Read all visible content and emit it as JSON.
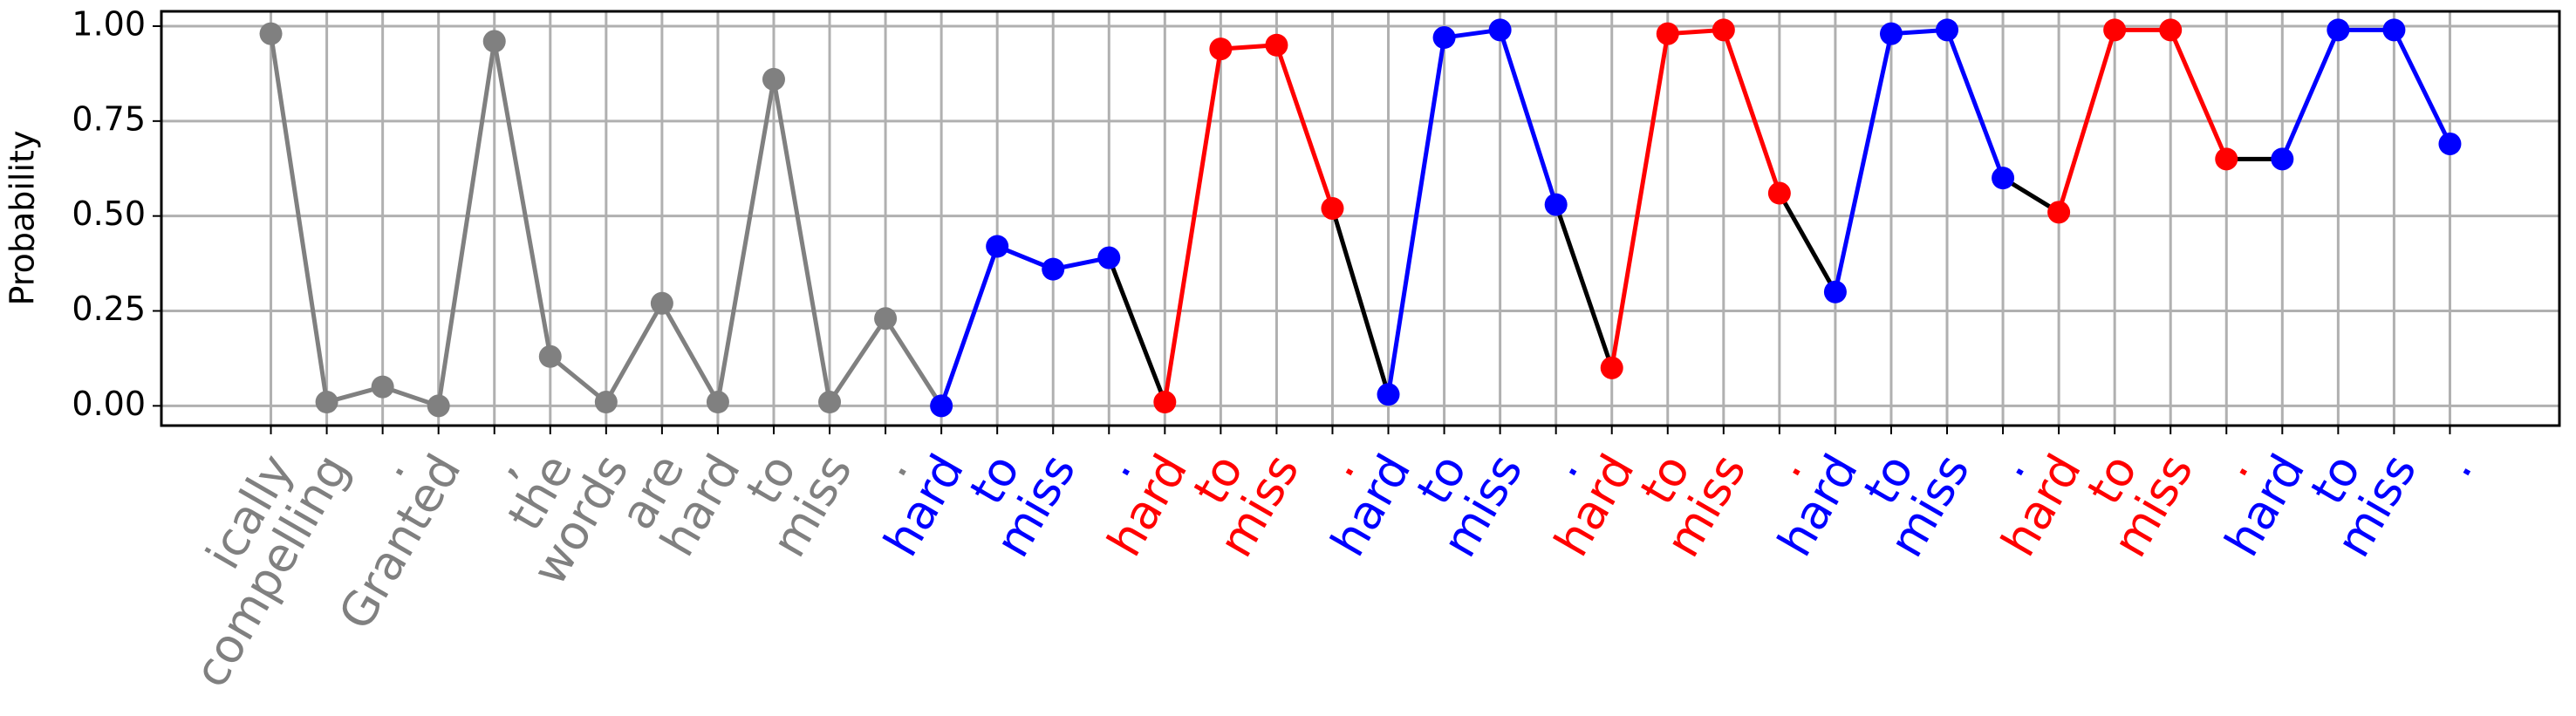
{
  "chart_data": {
    "type": "line",
    "y_label": "Probability",
    "categories": [
      "ically",
      "compelling",
      ".",
      "Granted",
      ",",
      "the",
      "words",
      "are",
      "hard",
      "to",
      "miss",
      ".",
      "hard",
      "to",
      "miss",
      ".",
      "hard",
      "to",
      "miss",
      ".",
      "hard",
      "to",
      "miss",
      ".",
      "hard",
      "to",
      "miss",
      ".",
      "hard",
      "to",
      "miss",
      ".",
      "hard",
      "to",
      "miss",
      ".",
      "hard",
      "to",
      "miss",
      "."
    ],
    "series": [
      {
        "values": [
          0.98,
          0.01,
          0.05,
          0.0,
          0.96,
          0.13,
          0.01,
          0.27,
          0.01,
          0.86,
          0.01,
          0.23,
          0.0,
          0.42,
          0.36,
          0.39,
          0.01,
          0.94,
          0.95,
          0.52,
          0.03,
          0.97,
          0.99,
          0.53,
          0.1,
          0.98,
          0.99,
          0.56,
          0.3,
          0.98,
          0.99,
          0.6,
          0.51,
          0.99,
          0.99,
          0.65,
          0.65,
          0.99,
          0.99,
          0.69
        ],
        "point_colors": [
          "#808080",
          "#808080",
          "#808080",
          "#808080",
          "#808080",
          "#808080",
          "#808080",
          "#808080",
          "#808080",
          "#808080",
          "#808080",
          "#808080",
          "#0000ff",
          "#0000ff",
          "#0000ff",
          "#0000ff",
          "#ff0000",
          "#ff0000",
          "#ff0000",
          "#ff0000",
          "#0000ff",
          "#0000ff",
          "#0000ff",
          "#0000ff",
          "#ff0000",
          "#ff0000",
          "#ff0000",
          "#ff0000",
          "#0000ff",
          "#0000ff",
          "#0000ff",
          "#0000ff",
          "#ff0000",
          "#ff0000",
          "#ff0000",
          "#ff0000",
          "#0000ff",
          "#0000ff",
          "#0000ff",
          "#0000ff"
        ],
        "segment_colors": [
          "#808080",
          "#808080",
          "#808080",
          "#808080",
          "#808080",
          "#808080",
          "#808080",
          "#808080",
          "#808080",
          "#808080",
          "#808080",
          "#808080",
          "#0000ff",
          "#0000ff",
          "#0000ff",
          "#000000",
          "#ff0000",
          "#ff0000",
          "#ff0000",
          "#000000",
          "#0000ff",
          "#0000ff",
          "#0000ff",
          "#000000",
          "#ff0000",
          "#ff0000",
          "#ff0000",
          "#000000",
          "#0000ff",
          "#0000ff",
          "#0000ff",
          "#000000",
          "#ff0000",
          "#ff0000",
          "#ff0000",
          "#000000",
          "#0000ff",
          "#0000ff",
          "#0000ff"
        ]
      }
    ],
    "ylim": [
      -0.052,
      1.039
    ],
    "yticks": [
      {
        "value": 0,
        "label": "0.00"
      },
      {
        "value": 0.25,
        "label": "0.25"
      },
      {
        "value": 0.5,
        "label": "0.50"
      },
      {
        "value": 0.75,
        "label": "0.75"
      },
      {
        "value": 1,
        "label": "1.00"
      }
    ],
    "grid": true
  }
}
